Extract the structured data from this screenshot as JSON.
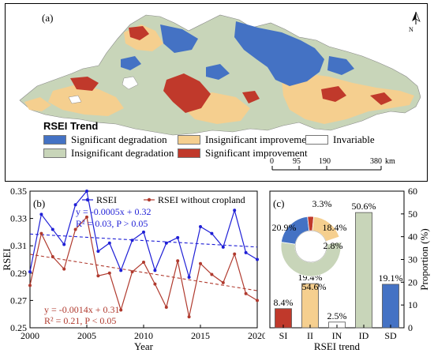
{
  "map": {
    "panel_tag": "(a)",
    "north_label": "N",
    "legend_title": "RSEI Trend",
    "legend": [
      {
        "key": "sd",
        "label": "Significant degradation",
        "color": "#4472c4"
      },
      {
        "key": "ii",
        "label": "Insignificant improvement",
        "color": "#f5cf8f"
      },
      {
        "key": "in",
        "label": "Invariable",
        "color": "#ffffff"
      },
      {
        "key": "id",
        "label": "Insignificant degradation",
        "color": "#c8d5b9"
      },
      {
        "key": "si",
        "label": "Significant improvement",
        "color": "#c0392b"
      }
    ],
    "scale": {
      "ticks": [
        "0",
        "95",
        "190",
        "380"
      ],
      "unit": "km"
    }
  },
  "chart_data": [
    {
      "type": "line",
      "panel_tag": "(b)",
      "xlabel": "Year",
      "ylabel": "RSEI",
      "xlim": [
        2000,
        2020
      ],
      "ylim": [
        0.25,
        0.35
      ],
      "xticks": [
        "2000",
        "2005",
        "2010",
        "2015",
        "2020"
      ],
      "yticks": [
        "0.25",
        "0.27",
        "0.29",
        "0.31",
        "0.33",
        "0.35"
      ],
      "x": [
        2000,
        2001,
        2002,
        2003,
        2004,
        2005,
        2006,
        2007,
        2008,
        2009,
        2010,
        2011,
        2012,
        2013,
        2014,
        2015,
        2016,
        2017,
        2018,
        2019,
        2020
      ],
      "series": [
        {
          "name": "RSEI",
          "color": "#1f1fd6",
          "values": [
            0.291,
            0.333,
            0.322,
            0.311,
            0.34,
            0.35,
            0.306,
            0.312,
            0.292,
            0.314,
            0.32,
            0.292,
            0.312,
            0.316,
            0.287,
            0.324,
            0.319,
            0.309,
            0.336,
            0.305,
            0.3
          ]
        },
        {
          "name": "RSEI without cropland",
          "color": "#b03a2e",
          "values": [
            0.281,
            0.319,
            0.302,
            0.293,
            0.322,
            0.331,
            0.288,
            0.29,
            0.263,
            0.291,
            0.298,
            0.282,
            0.265,
            0.299,
            0.258,
            0.297,
            0.289,
            0.283,
            0.304,
            0.275,
            0.27
          ]
        }
      ],
      "trendlines": [
        {
          "series": "RSEI",
          "slope": -0.0005,
          "intercept": 0.32,
          "equation": "y = -0.0005x + 0.32",
          "stats": "R² = 0.03, P > 0.05"
        },
        {
          "series": "RSEI without cropland",
          "slope": -0.0014,
          "intercept": 0.31,
          "equation": "y = -0.0014x + 0.31",
          "stats": "R² = 0.21, P < 0.05"
        }
      ],
      "grid": false,
      "legend_position": "top"
    },
    {
      "type": "bar",
      "panel_tag": "(c)",
      "xlabel": "RSEI trend",
      "ylabel": "Proportion (%)",
      "ylim": [
        0,
        60
      ],
      "yticks": [
        "0",
        "10",
        "20",
        "30",
        "40",
        "50",
        "60"
      ],
      "categories": [
        "SI",
        "II",
        "IN",
        "ID",
        "SD"
      ],
      "values": [
        8.4,
        19.4,
        2.5,
        50.6,
        19.1
      ],
      "value_labels": [
        "8.4%",
        "19.4%",
        "2.5%",
        "50.6%",
        "19.1%"
      ],
      "colors": [
        "#c0392b",
        "#f5cf8f",
        "#ffffff",
        "#c8d5b9",
        "#4472c4"
      ]
    },
    {
      "type": "pie",
      "donut": true,
      "slices": [
        {
          "category": "ID",
          "value": 54.6,
          "label": "54.6%",
          "color": "#c8d5b9"
        },
        {
          "category": "SD",
          "value": 20.9,
          "label": "20.9%",
          "color": "#4472c4"
        },
        {
          "category": "SI",
          "value": 3.3,
          "label": "3.3%",
          "color": "#c0392b"
        },
        {
          "category": "II",
          "value": 18.4,
          "label": "18.4%",
          "color": "#f5cf8f"
        },
        {
          "category": "IN",
          "value": 2.8,
          "label": "2.8%",
          "color": "#ffffff"
        }
      ]
    }
  ]
}
